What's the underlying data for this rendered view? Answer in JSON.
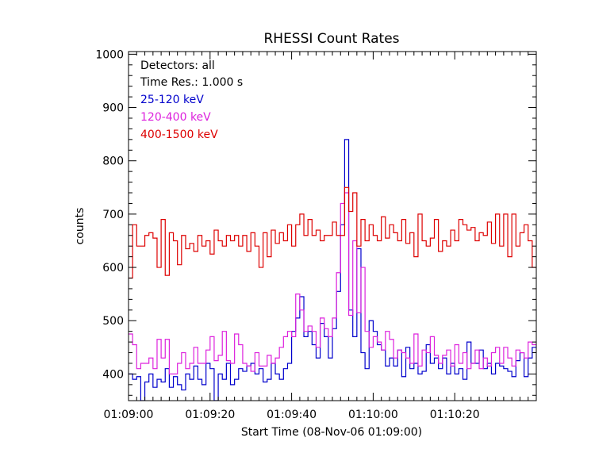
{
  "chart_data": {
    "type": "line",
    "step": true,
    "title": "RHESSI Count Rates",
    "xlabel": "Start Time (08-Nov-06 01:09:00)",
    "ylabel": "counts",
    "xlim": [
      0,
      100
    ],
    "ylim": [
      350,
      1005
    ],
    "x_ticks": [
      {
        "value": 0,
        "label": "01:09:00"
      },
      {
        "value": 20,
        "label": "01:09:20"
      },
      {
        "value": 40,
        "label": "01:09:40"
      },
      {
        "value": 60,
        "label": "01:10:00"
      },
      {
        "value": 80,
        "label": "01:10:20"
      }
    ],
    "x_minor_step": 2,
    "y_ticks": [
      400,
      500,
      600,
      700,
      800,
      900,
      1000
    ],
    "y_minor_step": 20,
    "legend_position": "top-left",
    "legend_info": [
      "Detectors: all",
      "Time Res.: 1.000 s"
    ],
    "series": [
      {
        "name": "25-120 keV",
        "color": "#0000cc",
        "values": [
          400,
          390,
          395,
          350,
          385,
          400,
          375,
          390,
          385,
          410,
          375,
          395,
          380,
          370,
          400,
          390,
          415,
          390,
          380,
          420,
          410,
          350,
          400,
          390,
          420,
          380,
          390,
          410,
          405,
          415,
          420,
          400,
          410,
          385,
          390,
          420,
          400,
          390,
          410,
          420,
          480,
          505,
          545,
          470,
          480,
          455,
          430,
          495,
          470,
          430,
          485,
          555,
          680,
          840,
          520,
          470,
          635,
          440,
          410,
          500,
          480,
          455,
          445,
          415,
          430,
          415,
          445,
          395,
          450,
          410,
          420,
          400,
          405,
          455,
          420,
          430,
          410,
          430,
          400,
          420,
          400,
          410,
          390,
          460,
          420,
          420,
          445,
          410,
          420,
          400,
          420,
          415,
          410,
          405,
          395,
          425,
          440,
          395,
          430,
          450
        ]
      },
      {
        "name": "120-400 keV",
        "color": "#dd22dd",
        "values": [
          475,
          455,
          410,
          420,
          420,
          430,
          410,
          465,
          430,
          465,
          400,
          400,
          420,
          440,
          410,
          420,
          450,
          420,
          420,
          445,
          470,
          425,
          435,
          480,
          425,
          420,
          475,
          455,
          420,
          415,
          405,
          440,
          415,
          415,
          435,
          420,
          430,
          450,
          470,
          480,
          470,
          550,
          520,
          480,
          490,
          480,
          450,
          505,
          485,
          470,
          505,
          590,
          720,
          740,
          510,
          650,
          515,
          600,
          480,
          450,
          470,
          460,
          445,
          480,
          465,
          430,
          445,
          440,
          430,
          420,
          475,
          415,
          445,
          440,
          470,
          435,
          420,
          435,
          445,
          415,
          455,
          420,
          440,
          410,
          420,
          445,
          410,
          430,
          415,
          440,
          450,
          420,
          450,
          430,
          415,
          445,
          440,
          430,
          460,
          455
        ]
      },
      {
        "name": "400-1500 keV",
        "color": "#dd0000",
        "values": [
          580,
          680,
          640,
          640,
          660,
          665,
          655,
          600,
          690,
          585,
          665,
          650,
          605,
          660,
          635,
          645,
          630,
          660,
          640,
          650,
          625,
          670,
          650,
          640,
          660,
          650,
          660,
          640,
          660,
          630,
          665,
          640,
          600,
          665,
          620,
          670,
          645,
          665,
          650,
          680,
          640,
          680,
          700,
          660,
          690,
          660,
          670,
          650,
          660,
          660,
          685,
          660,
          660,
          750,
          705,
          740,
          640,
          690,
          650,
          680,
          660,
          650,
          695,
          655,
          680,
          665,
          650,
          690,
          645,
          665,
          620,
          700,
          650,
          640,
          655,
          690,
          630,
          650,
          640,
          670,
          650,
          690,
          680,
          670,
          675,
          650,
          665,
          660,
          685,
          645,
          700,
          640,
          700,
          620,
          700,
          640,
          665,
          680,
          650,
          600
        ]
      }
    ]
  }
}
